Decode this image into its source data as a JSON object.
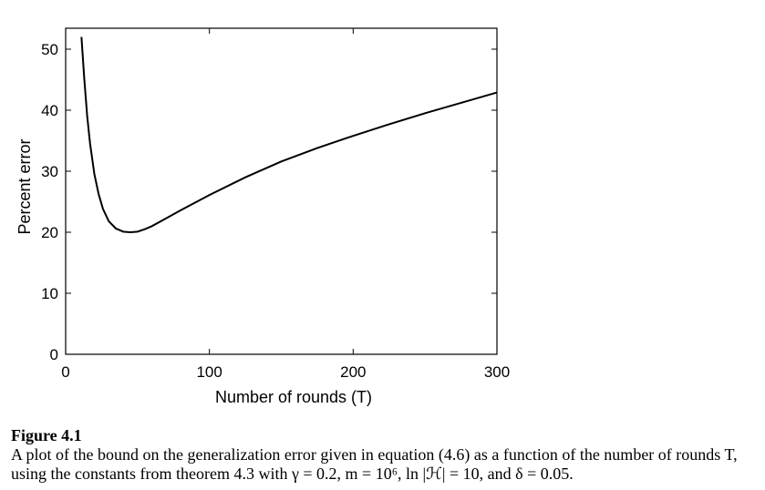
{
  "chart_data": {
    "type": "line",
    "xlabel": "Number of rounds (T)",
    "ylabel": "Percent error",
    "xlim": [
      0,
      300
    ],
    "ylim": [
      0,
      52
    ],
    "xticks": [
      0,
      100,
      200,
      300
    ],
    "xtick_labels": [
      "0",
      "100",
      "200",
      "300"
    ],
    "yticks": [
      0,
      10,
      20,
      30,
      40,
      50
    ],
    "ytick_labels": [
      "0",
      "10",
      "20",
      "30",
      "40",
      "50"
    ],
    "grid": false,
    "series": [
      {
        "x": [
          11,
          13,
          15,
          17,
          20,
          23,
          26,
          30,
          35,
          40,
          45,
          50,
          55,
          60,
          70,
          80,
          100,
          125,
          150,
          175,
          200,
          225,
          250,
          275,
          300
        ],
        "y": [
          52,
          45,
          39,
          34.5,
          29.5,
          26.2,
          23.8,
          21.8,
          20.6,
          20.1,
          20.0,
          20.1,
          20.5,
          21.0,
          22.3,
          23.6,
          26.1,
          29.0,
          31.6,
          33.8,
          35.8,
          37.7,
          39.5,
          41.2,
          42.9
        ]
      }
    ]
  },
  "caption": {
    "title": "Figure 4.1",
    "text": "A plot of the bound on the generalization error given in equation (4.6) as a function of the number of rounds T, using the constants from theorem 4.3 with γ = 0.2, m = 10⁶, ln |ℋ| = 10, and δ = 0.05."
  }
}
